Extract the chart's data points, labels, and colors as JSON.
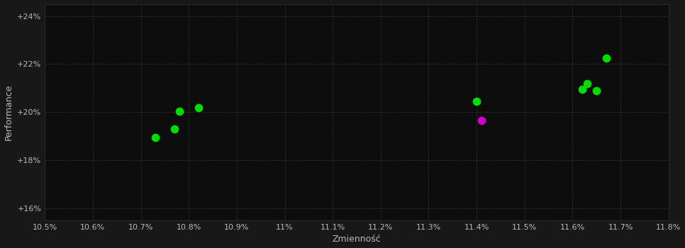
{
  "background_color": "#181818",
  "plot_bg_color": "#0d0d0d",
  "grid_color": "#3a3a3a",
  "text_color": "#bbbbbb",
  "xlabel": "Zmienność",
  "ylabel": "Performance",
  "xlim": [
    0.105,
    0.118
  ],
  "ylim": [
    0.155,
    0.245
  ],
  "xticks": [
    0.105,
    0.106,
    0.107,
    0.108,
    0.109,
    0.11,
    0.111,
    0.112,
    0.113,
    0.114,
    0.115,
    0.116,
    0.117,
    0.118
  ],
  "yticks": [
    0.16,
    0.18,
    0.2,
    0.22,
    0.24
  ],
  "ytick_labels": [
    "+16%",
    "+18%",
    "+20%",
    "+22%",
    "+24%"
  ],
  "xtick_labels": [
    "10.5%",
    "10.6%",
    "10.7%",
    "10.8%",
    "10.9%",
    "11%",
    "11.1%",
    "11.2%",
    "11.3%",
    "11.4%",
    "11.5%",
    "11.6%",
    "11.7%",
    "11.8%"
  ],
  "points_green_xy": [
    [
      0.1073,
      0.1895
    ],
    [
      0.1077,
      0.193
    ],
    [
      0.1078,
      0.2005
    ],
    [
      0.1082,
      0.202
    ],
    [
      0.114,
      0.2045
    ],
    [
      0.1162,
      0.2095
    ],
    [
      0.1163,
      0.212
    ],
    [
      0.1165,
      0.209
    ],
    [
      0.1167,
      0.2225
    ]
  ],
  "points_magenta_xy": [
    [
      0.1141,
      0.1965
    ]
  ],
  "green_color": "#00dd00",
  "magenta_color": "#cc00cc",
  "marker_size": 55
}
